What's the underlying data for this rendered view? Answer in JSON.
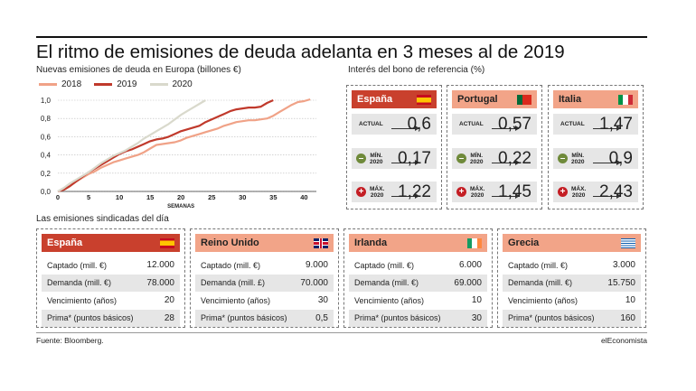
{
  "title": "El ritmo de emisiones de deuda adelanta en 3 meses al de 2019",
  "chart_title": "Nuevas emisiones de deuda en Europa (billones €)",
  "bond_title": "Interés del bono de referencia (%)",
  "sindicadas_title": "Las emisiones sindicadas del día",
  "source": "Fuente: Bloomberg.",
  "brand": "elEconomista",
  "colors": {
    "s2018": "#f0a287",
    "s2019": "#c0392b",
    "s2020": "#d9d9cc",
    "red_head": "#c9402d",
    "salmon_head": "#f2a488",
    "min_icon": "#6f8a3a",
    "max_icon": "#c41e24"
  },
  "chart_data": {
    "type": "line",
    "title": "Nuevas emisiones de deuda en Europa (billones €)",
    "xlabel": "SEMANAS",
    "ylabel": "",
    "xlim": [
      0,
      42
    ],
    "ylim": [
      0,
      1.0
    ],
    "xticks": [
      0,
      5,
      10,
      15,
      20,
      25,
      30,
      35,
      40
    ],
    "yticks": [
      "0,0",
      "0,2",
      "0,4",
      "0,6",
      "0,8",
      "1,0"
    ],
    "ytick_values": [
      0,
      0.2,
      0.4,
      0.6,
      0.8,
      1.0
    ],
    "grid": true,
    "legend_position": "top-left",
    "series": [
      {
        "name": "2018",
        "color": "#f0a287",
        "x": [
          0,
          1,
          2,
          3,
          4,
          5,
          6,
          7,
          8,
          9,
          10,
          11,
          12,
          13,
          14,
          15,
          16,
          17,
          18,
          19,
          20,
          21,
          22,
          23,
          24,
          25,
          26,
          27,
          28,
          29,
          30,
          31,
          32,
          33,
          34,
          35,
          36,
          37,
          38,
          39,
          40,
          41
        ],
        "y": [
          0,
          0.02,
          0.06,
          0.11,
          0.15,
          0.19,
          0.22,
          0.26,
          0.29,
          0.32,
          0.34,
          0.36,
          0.38,
          0.4,
          0.43,
          0.47,
          0.51,
          0.52,
          0.53,
          0.54,
          0.56,
          0.59,
          0.61,
          0.63,
          0.65,
          0.67,
          0.69,
          0.72,
          0.74,
          0.76,
          0.77,
          0.78,
          0.78,
          0.79,
          0.8,
          0.83,
          0.87,
          0.91,
          0.95,
          0.98,
          0.99,
          1.01
        ]
      },
      {
        "name": "2019",
        "color": "#c0392b",
        "x": [
          0,
          1,
          2,
          3,
          4,
          5,
          6,
          7,
          8,
          9,
          10,
          11,
          12,
          13,
          14,
          15,
          16,
          17,
          18,
          19,
          20,
          21,
          22,
          23,
          24,
          25,
          26,
          27,
          28,
          29,
          30,
          31,
          32,
          33,
          34,
          35
        ],
        "y": [
          0,
          0.02,
          0.06,
          0.11,
          0.16,
          0.21,
          0.25,
          0.29,
          0.33,
          0.37,
          0.41,
          0.44,
          0.46,
          0.49,
          0.52,
          0.55,
          0.57,
          0.58,
          0.6,
          0.63,
          0.66,
          0.68,
          0.7,
          0.72,
          0.76,
          0.79,
          0.82,
          0.85,
          0.88,
          0.9,
          0.91,
          0.92,
          0.92,
          0.93,
          0.97,
          1.0
        ]
      },
      {
        "name": "2020",
        "color": "#d9d9cc",
        "x": [
          0,
          1,
          2,
          3,
          4,
          5,
          6,
          7,
          8,
          9,
          10,
          11,
          12,
          13,
          14,
          15,
          16,
          17,
          18,
          19,
          20,
          21,
          22,
          23,
          24
        ],
        "y": [
          0,
          0.04,
          0.09,
          0.13,
          0.17,
          0.21,
          0.26,
          0.31,
          0.35,
          0.39,
          0.42,
          0.45,
          0.49,
          0.53,
          0.58,
          0.62,
          0.66,
          0.7,
          0.74,
          0.79,
          0.84,
          0.88,
          0.92,
          0.96,
          1.0
        ]
      }
    ]
  },
  "bond_panels": [
    {
      "country": "España",
      "flag": "es",
      "head": "red",
      "actual": "0,6",
      "min": "0,17",
      "max": "1,22"
    },
    {
      "country": "Portugal",
      "flag": "pt",
      "head": "salmon",
      "actual": "0,57",
      "min": "0,22",
      "max": "1,45"
    },
    {
      "country": "Italia",
      "flag": "it",
      "head": "salmon",
      "actual": "1,47",
      "min": "0,9",
      "max": "2,43"
    }
  ],
  "bond_labels": {
    "actual": "ACTUAL",
    "min_l1": "MÍN.",
    "min_l2": "2020",
    "max_l1": "MÁX.",
    "max_l2": "2020",
    "min_sign": "–",
    "max_sign": "+"
  },
  "sindicadas": [
    {
      "country": "España",
      "flag": "es",
      "head": "red",
      "rows": [
        {
          "label": "Captado (mill. €)",
          "value": "12.000"
        },
        {
          "label": "Demanda (mill. €)",
          "value": "78.000"
        },
        {
          "label": "Vencimiento (años)",
          "value": "20"
        },
        {
          "label": "Prima* (puntos básicos)",
          "value": "28"
        }
      ]
    },
    {
      "country": "Reino Unido",
      "flag": "uk",
      "head": "salmon",
      "rows": [
        {
          "label": "Captado (mill. €)",
          "value": "9.000"
        },
        {
          "label": "Demanda (mill. £)",
          "value": "70.000"
        },
        {
          "label": "Vencimiento (años)",
          "value": "30"
        },
        {
          "label": "Prima* (puntos básicos)",
          "value": "0,5"
        }
      ]
    },
    {
      "country": "Irlanda",
      "flag": "ie",
      "head": "salmon",
      "rows": [
        {
          "label": "Captado (mill. €)",
          "value": "6.000"
        },
        {
          "label": "Demanda (mill. €)",
          "value": "69.000"
        },
        {
          "label": "Vencimiento (años)",
          "value": "10"
        },
        {
          "label": "Prima* (puntos básicos)",
          "value": "30"
        }
      ]
    },
    {
      "country": "Grecia",
      "flag": "gr",
      "head": "salmon",
      "rows": [
        {
          "label": "Captado (mill. €)",
          "value": "3.000"
        },
        {
          "label": "Demanda (mill. €)",
          "value": "15.750"
        },
        {
          "label": "Vencimiento (años)",
          "value": "10"
        },
        {
          "label": "Prima* (puntos básicos)",
          "value": "160"
        }
      ]
    }
  ]
}
